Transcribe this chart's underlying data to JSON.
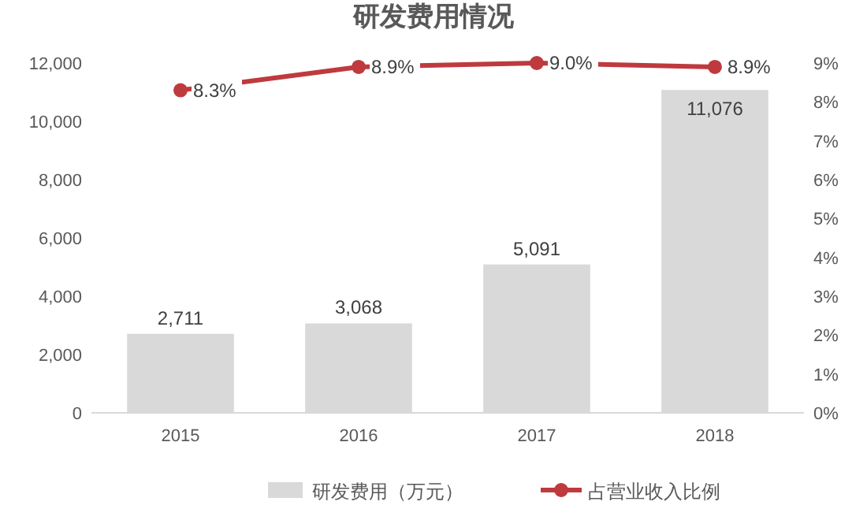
{
  "chart_data": {
    "type": "bar",
    "title": "研发费用情况",
    "categories": [
      "2015",
      "2016",
      "2017",
      "2018"
    ],
    "series": [
      {
        "name": "研发费用（万元）",
        "color": "#d9d9d9",
        "values": [
          2711,
          3068,
          5091,
          11076
        ],
        "value_labels": [
          "2,711",
          "3,068",
          "5,091",
          "11,076"
        ]
      },
      {
        "name": "占营业收入比例",
        "type": "line",
        "axis": "y2",
        "color": "#be3a3e",
        "values": [
          8.3,
          8.9,
          9.0,
          8.9
        ],
        "value_labels": [
          "8.3%",
          "8.9%",
          "9.0%",
          "8.9%"
        ]
      }
    ],
    "ylim": [
      0,
      12000
    ],
    "yticks": [
      0,
      {
        "value": 2000,
        "label": "2,000"
      },
      {
        "value": 4000,
        "label": "4,000"
      },
      {
        "value": 6000,
        "label": "6,000"
      },
      {
        "value": 8000,
        "label": "8,000"
      },
      {
        "value": 10000,
        "label": "10,000"
      },
      {
        "value": 12000,
        "label": "12,000"
      }
    ],
    "y2lim": [
      0,
      9
    ],
    "y2ticks": [
      {
        "value": 0,
        "label": "0%"
      },
      {
        "value": 1,
        "label": "1%"
      },
      {
        "value": 2,
        "label": "2%"
      },
      {
        "value": 3,
        "label": "3%"
      },
      {
        "value": 4,
        "label": "4%"
      },
      {
        "value": 5,
        "label": "5%"
      },
      {
        "value": 6,
        "label": "6%"
      },
      {
        "value": 7,
        "label": "7%"
      },
      {
        "value": 8,
        "label": "8%"
      },
      {
        "value": 9,
        "label": "9%"
      }
    ],
    "marker": "circle",
    "legend": "bottom"
  }
}
